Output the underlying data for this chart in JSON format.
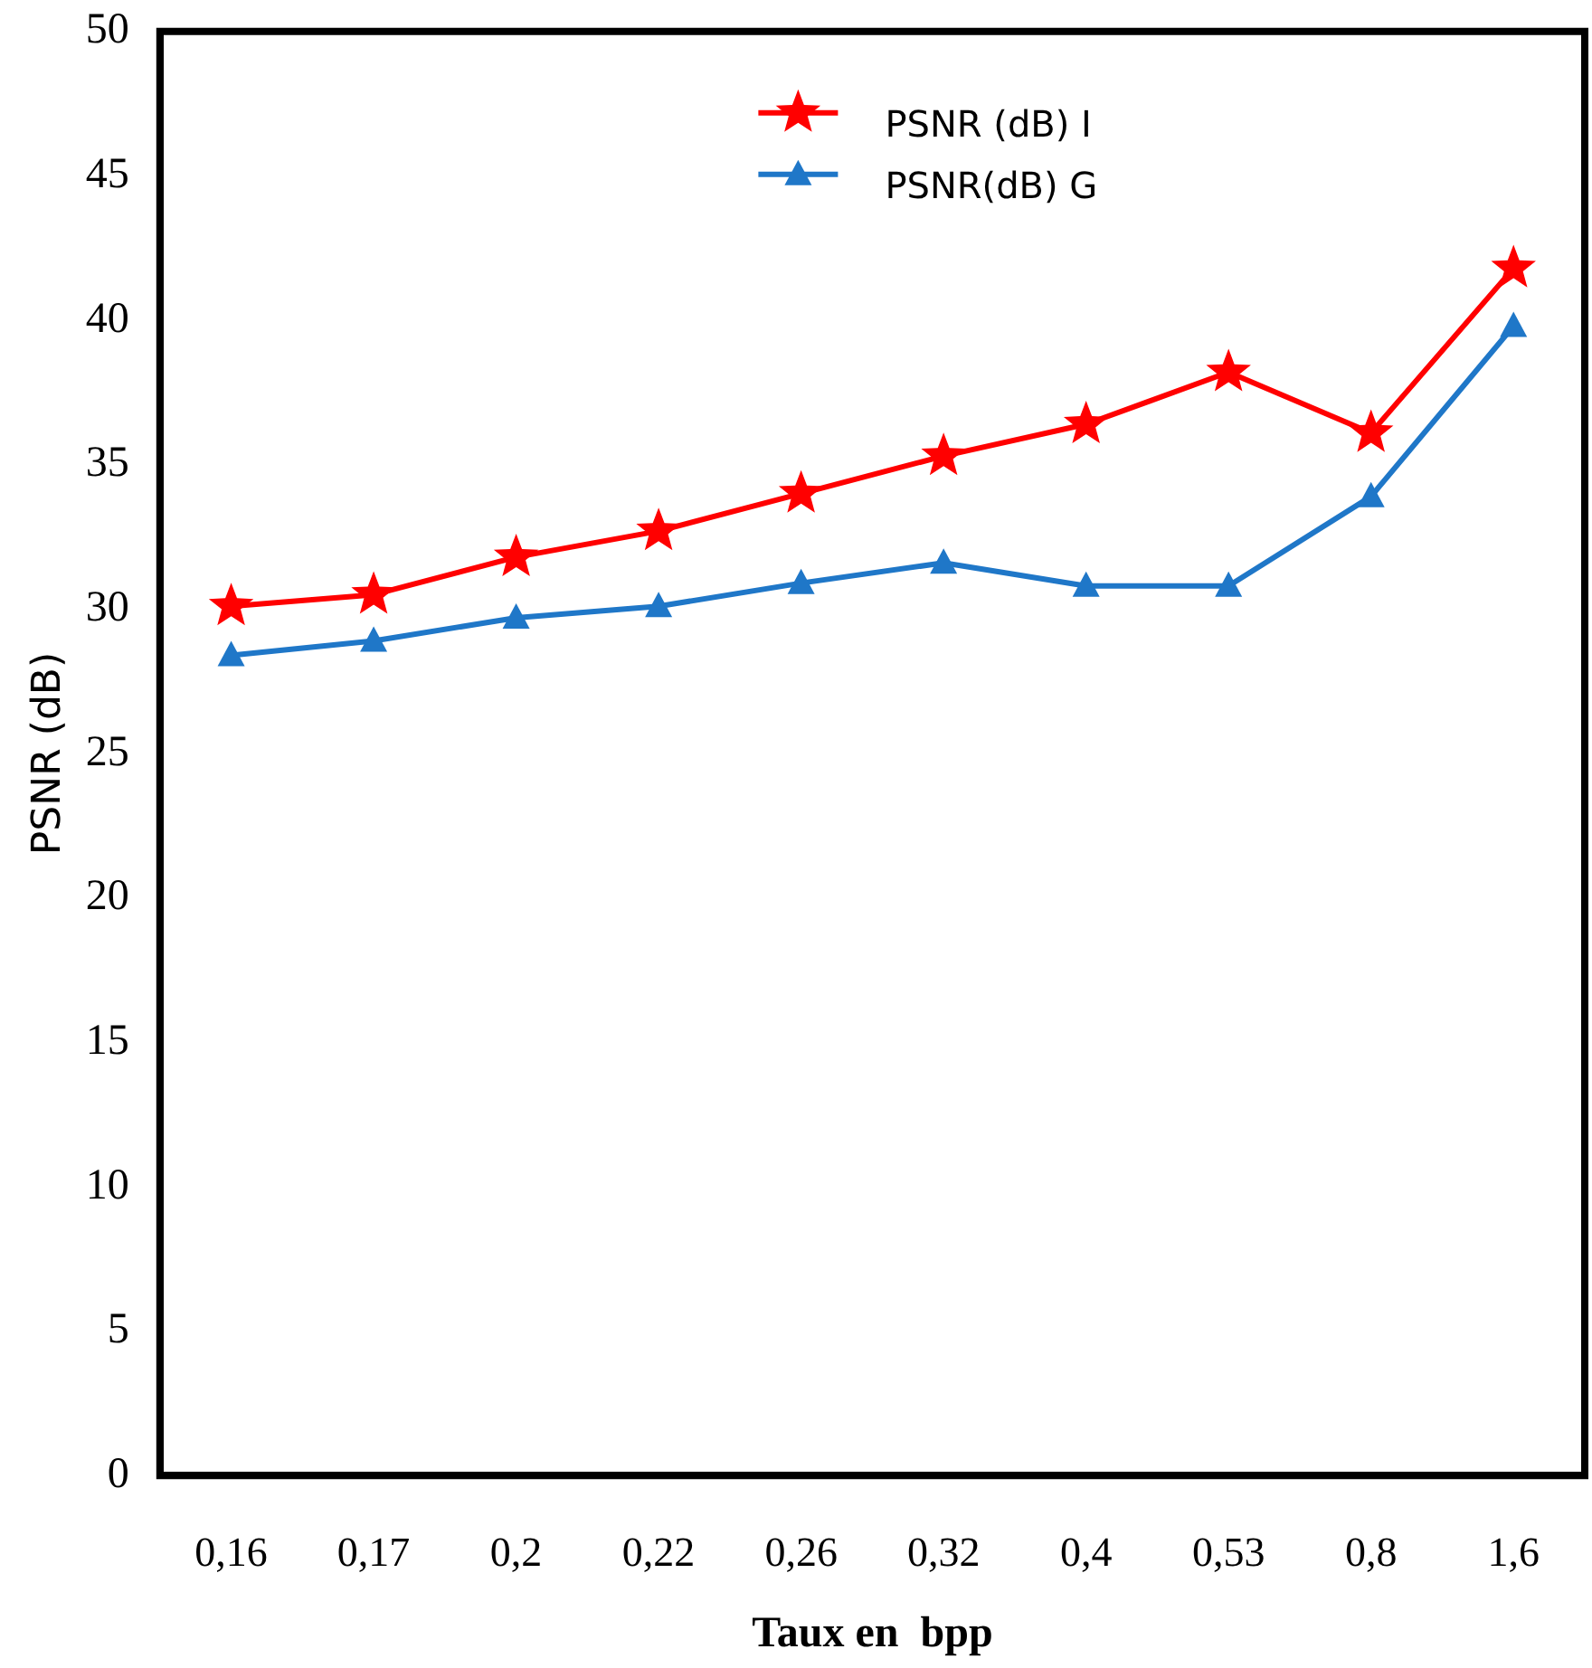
{
  "chart_data": {
    "type": "line",
    "xlabel": "Taux en  bpp",
    "ylabel": "PSNR (dB)",
    "categories": [
      "0,16",
      "0,17",
      "0,2",
      "0,22",
      "0,26",
      "0,32",
      "0,4",
      "0,53",
      "0,8",
      "1,6"
    ],
    "series": [
      {
        "name": "PSNR (dB) I",
        "color": "#ff0000",
        "marker": "star",
        "values": [
          30.1,
          30.5,
          31.8,
          32.7,
          34.0,
          35.3,
          36.4,
          38.2,
          36.1,
          41.8
        ]
      },
      {
        "name": "PSNR(dB) G",
        "color": "#1f77c8",
        "marker": "triangle",
        "values": [
          28.4,
          28.9,
          29.7,
          30.1,
          30.9,
          31.6,
          30.8,
          30.8,
          33.9,
          39.8
        ]
      }
    ],
    "ylim": [
      0,
      50
    ],
    "yticks": [
      0,
      5,
      10,
      15,
      20,
      25,
      30,
      35,
      40,
      45,
      50
    ],
    "grid": false,
    "legend": "top right",
    "line_style": "solid"
  }
}
